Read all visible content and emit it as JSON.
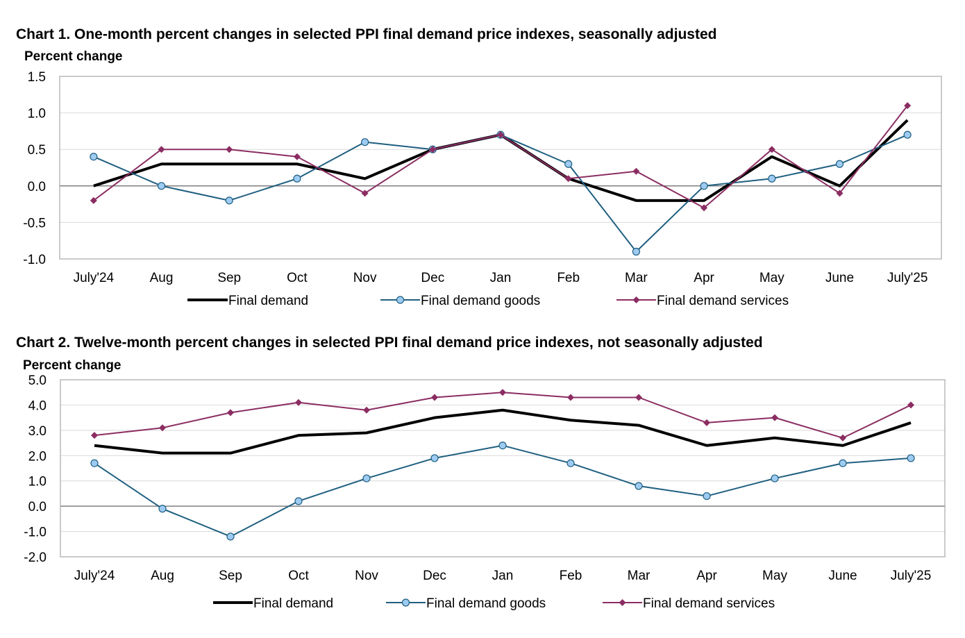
{
  "colors": {
    "final_demand": "#000000",
    "goods_line": "#1f5f80",
    "goods_marker": "#9ecbf2",
    "services": "#8b2d62",
    "grid": "#d9d9d9",
    "zero": "#7f7f7f",
    "frame": "#a6a6a6"
  },
  "chart_data": [
    {
      "type": "line",
      "title": "Chart 1. One-month percent changes in selected PPI final demand price indexes, seasonally adjusted",
      "ylabel": "Percent change",
      "xlabel": "",
      "ylim": [
        -1.0,
        1.5
      ],
      "yticks": [
        1.5,
        1.0,
        0.5,
        0.0,
        -0.5,
        -1.0
      ],
      "ytick_labels": [
        "1.5",
        "1.0",
        "0.5",
        "0.0",
        "-0.5",
        "-1.0"
      ],
      "grid": true,
      "legend": "bottom",
      "categories": [
        "July'24",
        "Aug",
        "Sep",
        "Oct",
        "Nov",
        "Dec",
        "Jan",
        "Feb",
        "Mar",
        "Apr",
        "May",
        "June",
        "July'25"
      ],
      "series": [
        {
          "name": "Final demand",
          "values": [
            0.0,
            0.3,
            0.3,
            0.3,
            0.1,
            0.5,
            0.7,
            0.1,
            -0.2,
            -0.2,
            0.4,
            0.0,
            0.9
          ]
        },
        {
          "name": "Final demand goods",
          "values": [
            0.4,
            0.0,
            -0.2,
            0.1,
            0.6,
            0.5,
            0.7,
            0.3,
            -0.9,
            0.0,
            0.1,
            0.3,
            0.7
          ]
        },
        {
          "name": "Final demand services",
          "values": [
            -0.2,
            0.5,
            0.5,
            0.4,
            -0.1,
            0.5,
            0.7,
            0.1,
            0.2,
            -0.3,
            0.5,
            -0.1,
            1.1
          ]
        }
      ]
    },
    {
      "type": "line",
      "title": "Chart 2. Twelve-month percent changes in selected PPI final demand price indexes, not seasonally adjusted",
      "ylabel": "Percent change",
      "xlabel": "",
      "ylim": [
        -2.0,
        5.0
      ],
      "yticks": [
        5.0,
        4.0,
        3.0,
        2.0,
        1.0,
        0.0,
        -1.0,
        -2.0
      ],
      "ytick_labels": [
        "5.0",
        "4.0",
        "3.0",
        "2.0",
        "1.0",
        "0.0",
        "-1.0",
        "-2.0"
      ],
      "grid": true,
      "legend": "bottom",
      "categories": [
        "July'24",
        "Aug",
        "Sep",
        "Oct",
        "Nov",
        "Dec",
        "Jan",
        "Feb",
        "Mar",
        "Apr",
        "May",
        "June",
        "July'25"
      ],
      "series": [
        {
          "name": "Final demand",
          "values": [
            2.4,
            2.1,
            2.1,
            2.8,
            2.9,
            3.5,
            3.8,
            3.4,
            3.2,
            2.4,
            2.7,
            2.4,
            3.3
          ]
        },
        {
          "name": "Final demand goods",
          "values": [
            1.7,
            -0.1,
            -1.2,
            0.2,
            1.1,
            1.9,
            2.4,
            1.7,
            0.8,
            0.4,
            1.1,
            1.7,
            1.9
          ]
        },
        {
          "name": "Final demand services",
          "values": [
            2.8,
            3.1,
            3.7,
            4.1,
            3.8,
            4.3,
            4.5,
            4.3,
            4.3,
            3.3,
            3.5,
            2.7,
            4.0
          ]
        }
      ]
    }
  ]
}
